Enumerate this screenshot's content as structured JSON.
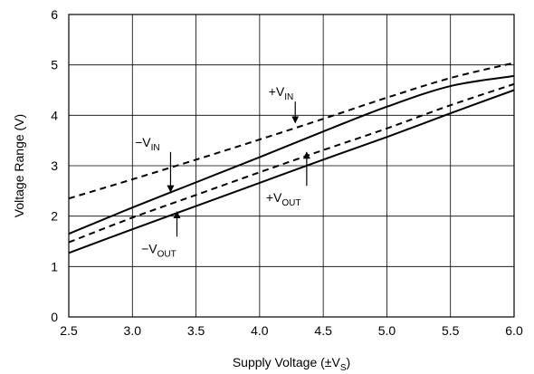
{
  "chart_data": {
    "type": "line",
    "title": "",
    "xlabel_main": "Supply Voltage (±V",
    "xlabel_sub": "S",
    "xlabel_tail": ")",
    "ylabel": "Voltage Range (V)",
    "xlim": [
      2.5,
      6.0
    ],
    "ylim": [
      0,
      6
    ],
    "xticks": [
      "2.5",
      "3.0",
      "3.5",
      "4.0",
      "4.5",
      "5.0",
      "5.5",
      "6.0"
    ],
    "yticks": [
      "0",
      "1",
      "2",
      "3",
      "4",
      "5",
      "6"
    ],
    "grid": true,
    "series": [
      {
        "name": "+VIN",
        "style": "dashed",
        "x": [
          2.5,
          3.0,
          3.5,
          4.0,
          4.5,
          5.0,
          5.5,
          6.0
        ],
        "y": [
          2.35,
          2.73,
          3.12,
          3.52,
          3.93,
          4.35,
          4.74,
          5.04
        ]
      },
      {
        "name": "−VIN",
        "style": "solid",
        "x": [
          2.5,
          3.0,
          3.5,
          4.0,
          4.5,
          5.0,
          5.5,
          6.0
        ],
        "y": [
          1.65,
          2.17,
          2.67,
          3.17,
          3.68,
          4.17,
          4.58,
          4.78
        ]
      },
      {
        "name": "+VOUT",
        "style": "dashed",
        "x": [
          2.5,
          3.0,
          3.5,
          4.0,
          4.5,
          5.0,
          5.5,
          6.0
        ],
        "y": [
          1.48,
          1.97,
          2.42,
          2.87,
          3.31,
          3.74,
          4.2,
          4.62
        ]
      },
      {
        "name": "−VOUT",
        "style": "solid",
        "x": [
          2.5,
          3.0,
          3.5,
          4.0,
          4.5,
          5.0,
          5.5,
          6.0
        ],
        "y": [
          1.27,
          1.74,
          2.2,
          2.66,
          3.12,
          3.57,
          4.04,
          4.5
        ]
      }
    ],
    "annotations": [
      {
        "main": "+V",
        "sub": "IN",
        "x": 4.28,
        "y": 3.82,
        "tx": 4.07,
        "ty": 4.38
      },
      {
        "main": "−V",
        "sub": "IN",
        "x": 3.3,
        "y": 2.45,
        "tx": 3.02,
        "ty": 3.38
      },
      {
        "main": "+V",
        "sub": "OUT",
        "x": 4.37,
        "y": 3.3,
        "tx": 4.05,
        "ty": 2.28
      },
      {
        "main": "−V",
        "sub": "OUT",
        "x": 3.35,
        "y": 2.12,
        "tx": 3.07,
        "ty": 1.27
      }
    ]
  }
}
